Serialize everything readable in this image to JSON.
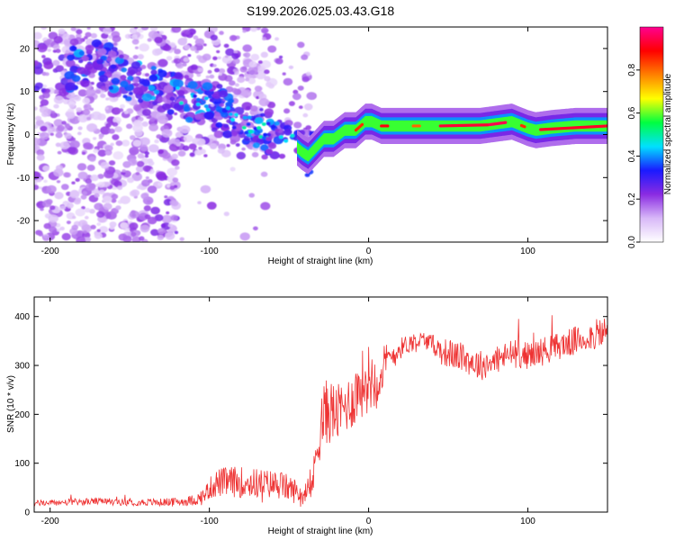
{
  "title": "S199.2026.025.03.43.G18",
  "chart_data": [
    {
      "type": "heatmap",
      "title": "S199.2026.025.03.43.G18",
      "xlabel": "Height of straight line (km)",
      "ylabel": "Frequency (Hz)",
      "xlim": [
        -210,
        150
      ],
      "ylim": [
        -25,
        25
      ],
      "xticks": [
        -200,
        -100,
        0,
        100
      ],
      "xtick_labels": [
        "-200",
        "-100",
        "0",
        "100"
      ],
      "yticks": [
        -20,
        -10,
        0,
        10,
        20
      ],
      "ytick_labels": [
        "-20",
        "-10",
        "0",
        "10",
        "20"
      ],
      "colorbar": {
        "label": "Normalized spectral amplitude",
        "range": [
          0.0,
          1.0
        ],
        "ticks": [
          0.0,
          0.2,
          0.4,
          0.6,
          0.8
        ],
        "tick_labels": [
          "0.0",
          "0.2",
          "0.4",
          "0.6",
          "0.8"
        ],
        "colors": [
          "#ffffff",
          "#d8b8f8",
          "#8a2be2",
          "#1a1aff",
          "#00e0ff",
          "#00ff40",
          "#ffff00",
          "#ff8000",
          "#ff0000",
          "#ff0090"
        ]
      },
      "ridge": {
        "x": [
          -210,
          -190,
          -170,
          -150,
          -130,
          -110,
          -95,
          -85,
          -75,
          -65,
          -55,
          -48,
          -42,
          -38,
          -33,
          -28,
          -22,
          -15,
          -8,
          -5,
          -2,
          2,
          8,
          15,
          30,
          50,
          70,
          80,
          90,
          100,
          105,
          115,
          130,
          150
        ],
        "freq": [
          14,
          15,
          17,
          13,
          11,
          8,
          7,
          3,
          2,
          1,
          -1,
          -2,
          -4,
          -5,
          -3,
          -1,
          -1,
          1,
          1,
          2,
          3,
          3,
          2,
          2,
          2,
          2,
          2,
          2.5,
          3,
          1.5,
          1,
          1.5,
          2,
          2
        ]
      }
    },
    {
      "type": "line",
      "xlabel": "Height of straight line (km)",
      "ylabel": "SNR (10 * v/v)",
      "xlim": [
        -210,
        150
      ],
      "ylim": [
        0,
        440
      ],
      "xticks": [
        -200,
        -100,
        0,
        100
      ],
      "xtick_labels": [
        "-200",
        "-100",
        "0",
        "100"
      ],
      "yticks": [
        0,
        100,
        200,
        300,
        400
      ],
      "ytick_labels": [
        "0",
        "100",
        "200",
        "300",
        "400"
      ],
      "color": "#ee3333",
      "series": [
        {
          "name": "SNR",
          "x": [
            -210,
            -190,
            -170,
            -150,
            -130,
            -115,
            -105,
            -100,
            -95,
            -85,
            -75,
            -65,
            -55,
            -45,
            -40,
            -35,
            -33,
            -30,
            -25,
            -20,
            -15,
            -10,
            -5,
            0,
            5,
            10,
            15,
            20,
            25,
            30,
            35,
            40,
            45,
            50,
            60,
            70,
            80,
            90,
            100,
            110,
            120,
            130,
            140,
            150
          ],
          "y": [
            18,
            20,
            22,
            20,
            20,
            22,
            28,
            48,
            60,
            62,
            60,
            58,
            55,
            42,
            30,
            60,
            120,
            185,
            210,
            200,
            215,
            230,
            260,
            275,
            270,
            300,
            320,
            335,
            345,
            350,
            352,
            345,
            330,
            325,
            315,
            300,
            310,
            325,
            320,
            330,
            340,
            350,
            360,
            370
          ],
          "amp": [
            6,
            7,
            7,
            7,
            8,
            9,
            14,
            22,
            30,
            32,
            32,
            30,
            30,
            25,
            15,
            30,
            50,
            70,
            70,
            60,
            55,
            60,
            70,
            70,
            60,
            45,
            30,
            22,
            20,
            20,
            18,
            18,
            28,
            30,
            30,
            32,
            28,
            30,
            28,
            30,
            28,
            30,
            30,
            35
          ]
        }
      ]
    }
  ]
}
